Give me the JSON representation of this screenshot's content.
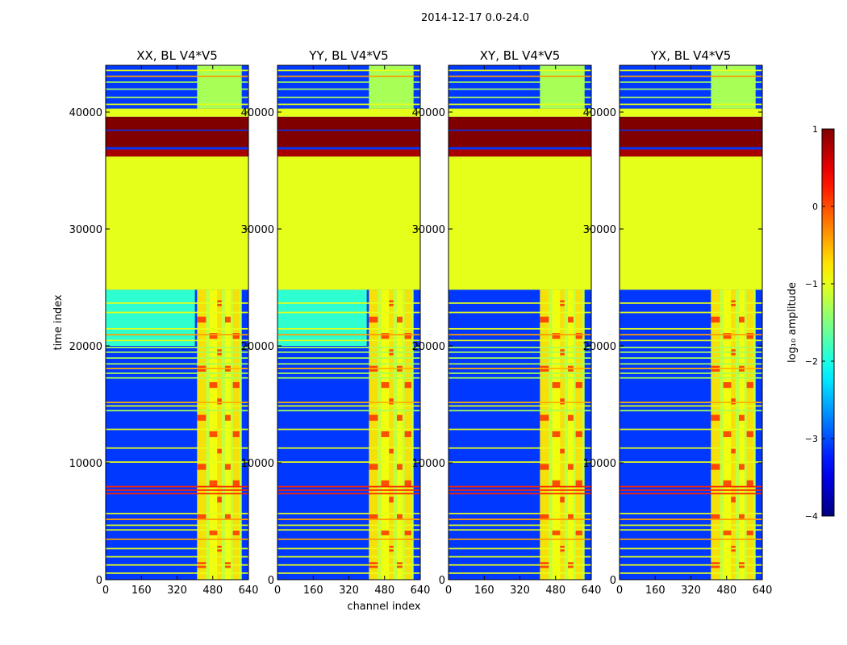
{
  "chart_data": {
    "type": "heatmap",
    "title": "2014-12-17 0.0-24.0",
    "xlabel": "channel index",
    "ylabel": "time index",
    "xlim": [
      0,
      640
    ],
    "ylim": [
      0,
      44000
    ],
    "xticks": [
      0,
      160,
      320,
      480,
      640
    ],
    "xtick_labels": [
      "0",
      "160",
      "320",
      "480",
      "640"
    ],
    "yticks": [
      0,
      10000,
      20000,
      30000,
      40000
    ],
    "ytick_labels": [
      "0",
      "10000",
      "20000",
      "30000",
      "40000"
    ],
    "panels": [
      {
        "title": "XX, BL V4*V5",
        "background_log": -3.1,
        "quiet_band_log": -1.9,
        "cross_pol": false
      },
      {
        "title": "YY, BL V4*V5",
        "background_log": -3.1,
        "quiet_band_log": -1.9,
        "cross_pol": false
      },
      {
        "title": "XY, BL V4*V5",
        "background_log": -3.1,
        "quiet_band_log": -3.0,
        "cross_pol": true
      },
      {
        "title": "YX, BL V4*V5",
        "background_log": -3.1,
        "quiet_band_log": -3.0,
        "cross_pol": true
      }
    ],
    "rfi_channel_range": [
      410,
      610
    ],
    "rfi_strong_channels": [
      [
        410,
        450
      ],
      [
        465,
        500
      ],
      [
        500,
        520
      ],
      [
        535,
        560
      ],
      [
        570,
        600
      ]
    ],
    "fill_blocks": [
      {
        "t_start": 24800,
        "t_end": 36200,
        "log_amp": -1.0
      },
      {
        "t_start": 36200,
        "t_end": 36800,
        "log_amp": 0.8
      },
      {
        "t_start": 37000,
        "t_end": 38400,
        "log_amp": 1.0
      },
      {
        "t_start": 38500,
        "t_end": 39600,
        "log_amp": 1.0
      },
      {
        "t_start": 39600,
        "t_end": 40300,
        "log_amp": -1.0
      }
    ],
    "flag_lines": [
      {
        "t": 500,
        "log_amp": -1.0
      },
      {
        "t": 1200,
        "log_amp": -1.0
      },
      {
        "t": 1900,
        "log_amp": -1.0
      },
      {
        "t": 2600,
        "log_amp": -1.0
      },
      {
        "t": 3400,
        "log_amp": -0.4
      },
      {
        "t": 4200,
        "log_amp": -1.0
      },
      {
        "t": 4600,
        "log_amp": -1.0
      },
      {
        "t": 5100,
        "log_amp": -0.4
      },
      {
        "t": 5600,
        "log_amp": -1.0
      },
      {
        "t": 7300,
        "log_amp": 0.2
      },
      {
        "t": 7600,
        "log_amp": 0.2
      },
      {
        "t": 7900,
        "log_amp": 0.2
      },
      {
        "t": 10000,
        "log_amp": -1.0
      },
      {
        "t": 11200,
        "log_amp": -1.0
      },
      {
        "t": 12800,
        "log_amp": -1.0
      },
      {
        "t": 14400,
        "log_amp": -1.3
      },
      {
        "t": 14800,
        "log_amp": -1.0
      },
      {
        "t": 15100,
        "log_amp": -0.5
      },
      {
        "t": 17200,
        "log_amp": -1.3
      },
      {
        "t": 17600,
        "log_amp": -1.3
      },
      {
        "t": 18000,
        "log_amp": -0.5
      },
      {
        "t": 18400,
        "log_amp": -1.3
      },
      {
        "t": 18900,
        "log_amp": -1.3
      },
      {
        "t": 19400,
        "log_amp": -1.3
      },
      {
        "t": 19800,
        "log_amp": -1.3
      },
      {
        "t": 20400,
        "log_amp": -1.0
      },
      {
        "t": 20900,
        "log_amp": -0.4
      },
      {
        "t": 21400,
        "log_amp": -1.0
      },
      {
        "t": 22800,
        "log_amp": -1.0
      },
      {
        "t": 23600,
        "log_amp": -1.0
      },
      {
        "t": 40600,
        "log_amp": -1.0
      },
      {
        "t": 41200,
        "log_amp": -1.3
      },
      {
        "t": 41900,
        "log_amp": -1.3
      },
      {
        "t": 42500,
        "log_amp": -1.3
      },
      {
        "t": 43000,
        "log_amp": -0.4
      },
      {
        "t": 43500,
        "log_amp": -1.0
      }
    ],
    "colorbar": {
      "label": "log₁₀ amplitude",
      "range": [
        -4,
        1
      ],
      "ticks": [
        -4,
        -3,
        -2,
        -1,
        0,
        1
      ],
      "tick_labels": [
        "−4",
        "−3",
        "−2",
        "−1",
        "0",
        "1"
      ],
      "colormap": "jet"
    }
  }
}
